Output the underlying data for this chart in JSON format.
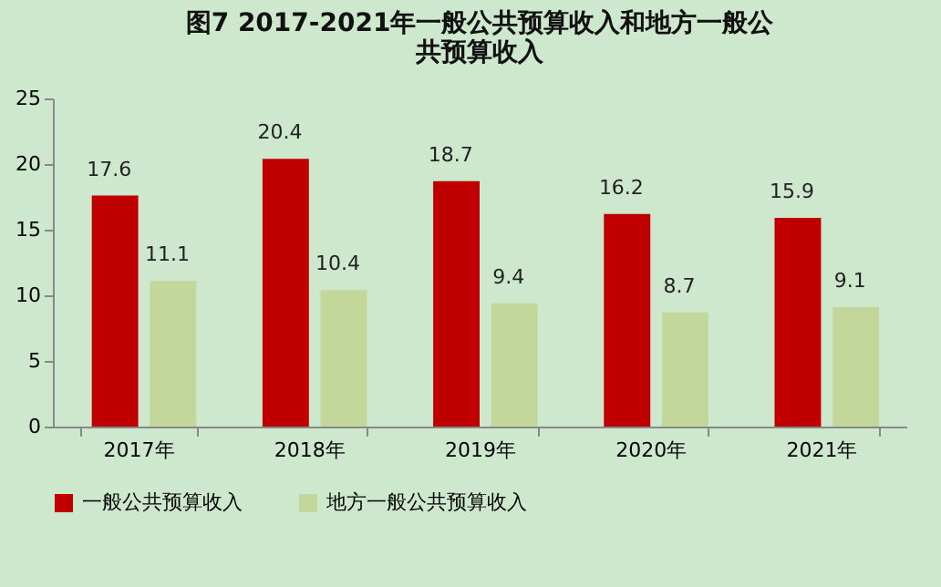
{
  "chart_data": {
    "type": "bar",
    "title": "图7 2017-2021年一般公共预算收入和地方一般公共预算收入",
    "categories": [
      "2017年",
      "2018年",
      "2019年",
      "2020年",
      "2021年"
    ],
    "series": [
      {
        "name": "一般公共预算收入",
        "color": "#c00000",
        "values": [
          17.6,
          20.4,
          18.7,
          16.2,
          15.9
        ]
      },
      {
        "name": "地方一般公共预算收入",
        "color": "#c4d79b",
        "values": [
          11.1,
          10.4,
          9.4,
          8.7,
          9.1
        ]
      }
    ],
    "ylim": [
      0,
      25
    ],
    "yticks": [
      0,
      5,
      10,
      15,
      20,
      25
    ],
    "data_labels": true,
    "legend": "bottom",
    "grid": false
  }
}
